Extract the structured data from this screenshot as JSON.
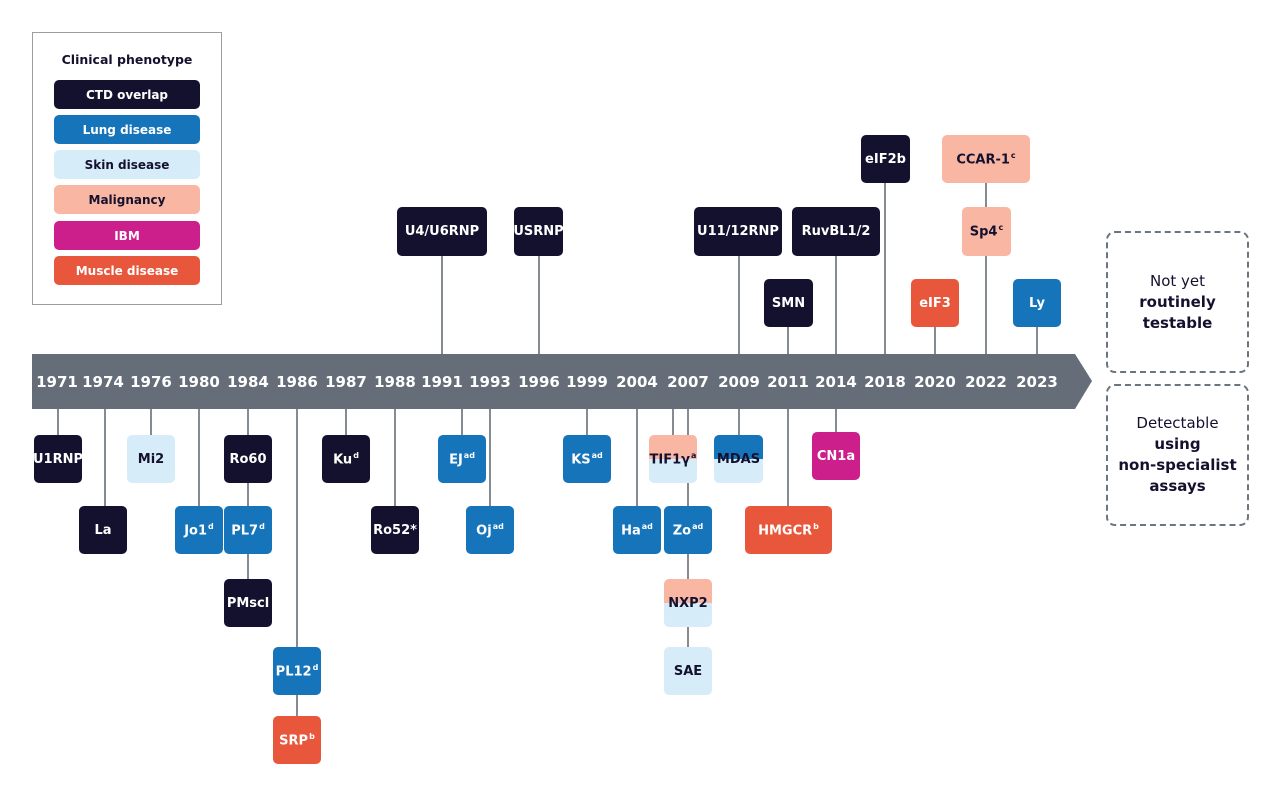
{
  "colors": {
    "ctd_overlap": "#14112e",
    "lung": "#1574ba",
    "skin": "#d7ecf9",
    "malignancy": "#f9b6a3",
    "ibm": "#cc1f8c",
    "muscle": "#e8563b",
    "axis": "#656e78",
    "connector": "#656e78"
  },
  "legend": {
    "title": "Clinical phenotype",
    "items": [
      {
        "label": "CTD overlap",
        "category": "ctd_overlap"
      },
      {
        "label": "Lung disease",
        "category": "lung"
      },
      {
        "label": "Skin disease",
        "category": "skin"
      },
      {
        "label": "Malignancy",
        "category": "malignancy"
      },
      {
        "label": "IBM",
        "category": "ibm"
      },
      {
        "label": "Muscle disease",
        "category": "muscle"
      }
    ]
  },
  "timeline": {
    "years": [
      "1971",
      "1974",
      "1976",
      "1980",
      "1984",
      "1986",
      "1987",
      "1988",
      "1991",
      "1993",
      "1996",
      "1999",
      "2004",
      "2007",
      "2009",
      "2011",
      "2014",
      "2018",
      "2020",
      "2022",
      "2023"
    ]
  },
  "antibodies": [
    {
      "label": "U1RNP",
      "sup": "",
      "category": "ctd_overlap"
    },
    {
      "label": "La",
      "sup": "",
      "category": "ctd_overlap"
    },
    {
      "label": "Mi2",
      "sup": "",
      "category": "skin"
    },
    {
      "label": "Jo1",
      "sup": "d",
      "category": "lung"
    },
    {
      "label": "Ro60",
      "sup": "",
      "category": "ctd_overlap"
    },
    {
      "label": "PL7",
      "sup": "d",
      "category": "lung"
    },
    {
      "label": "PMscl",
      "sup": "",
      "category": "ctd_overlap"
    },
    {
      "label": "PL12",
      "sup": "d",
      "category": "lung"
    },
    {
      "label": "SRP",
      "sup": "b",
      "category": "muscle"
    },
    {
      "label": "Ku",
      "sup": "d",
      "category": "ctd_overlap"
    },
    {
      "label": "Ro52*",
      "sup": "",
      "category": "ctd_overlap"
    },
    {
      "label": "U4/U6RNP",
      "sup": "",
      "category": "ctd_overlap"
    },
    {
      "label": "EJ",
      "sup": "ad",
      "category": "lung"
    },
    {
      "label": "Oj",
      "sup": "ad",
      "category": "lung"
    },
    {
      "label": "USRNP",
      "sup": "",
      "category": "ctd_overlap"
    },
    {
      "label": "KS",
      "sup": "ad",
      "category": "lung"
    },
    {
      "label": "Ha",
      "sup": "ad",
      "category": "lung"
    },
    {
      "label": "TIF1γ",
      "sup": "a",
      "category": "malignancy",
      "category2": "skin"
    },
    {
      "label": "Zo",
      "sup": "ad",
      "category": "lung"
    },
    {
      "label": "NXP2",
      "sup": "",
      "category": "malignancy",
      "category2": "skin"
    },
    {
      "label": "SAE",
      "sup": "",
      "category": "skin"
    },
    {
      "label": "U11/12RNP",
      "sup": "",
      "category": "ctd_overlap"
    },
    {
      "label": "MDAS",
      "sup": "",
      "category": "lung",
      "category2": "skin"
    },
    {
      "label": "SMN",
      "sup": "",
      "category": "ctd_overlap"
    },
    {
      "label": "HMGCR",
      "sup": "b",
      "category": "muscle"
    },
    {
      "label": "RuvBL1/2",
      "sup": "",
      "category": "ctd_overlap"
    },
    {
      "label": "CN1a",
      "sup": "",
      "category": "ibm"
    },
    {
      "label": "eIF2b",
      "sup": "",
      "category": "ctd_overlap"
    },
    {
      "label": "eIF3",
      "sup": "",
      "category": "muscle"
    },
    {
      "label": "CCAR-1",
      "sup": "c",
      "category": "malignancy"
    },
    {
      "label": "Sp4",
      "sup": "c",
      "category": "malignancy"
    },
    {
      "label": "Ly",
      "sup": "",
      "category": "lung"
    }
  ],
  "status": {
    "not_yet": {
      "line1": "Not yet",
      "line2": "routinely",
      "line3": "testable"
    },
    "detectable": {
      "line1": "Detectable",
      "line2": "using",
      "line3": "non-specialist",
      "line4": "assays"
    }
  }
}
